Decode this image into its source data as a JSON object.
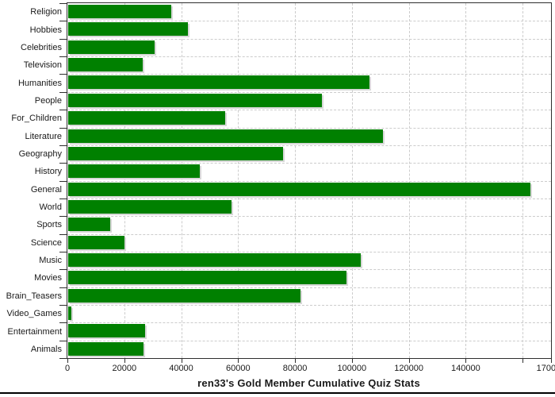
{
  "chart_data": {
    "type": "bar",
    "orientation": "horizontal",
    "title": "ren33's Gold Member Cumulative Quiz Stats",
    "categories": [
      "Religion",
      "Hobbies",
      "Celebrities",
      "Television",
      "Humanities",
      "People",
      "For_Children",
      "Literature",
      "Geography",
      "History",
      "General",
      "World",
      "Sports",
      "Science",
      "Music",
      "Movies",
      "Brain_Teasers",
      "Video_Games",
      "Entertainment",
      "Animals"
    ],
    "values": [
      36100,
      42000,
      30300,
      26200,
      105800,
      89300,
      55100,
      110600,
      75400,
      46300,
      162600,
      57300,
      14800,
      19700,
      102900,
      97900,
      81600,
      1000,
      26900,
      26400
    ],
    "xlabel": "",
    "ylabel": "",
    "xlim": [
      0,
      170000
    ],
    "x_ticks": [
      {
        "value": 0,
        "label": "0"
      },
      {
        "value": 20000,
        "label": "20000"
      },
      {
        "value": 40000,
        "label": "40000"
      },
      {
        "value": 60000,
        "label": "60000"
      },
      {
        "value": 80000,
        "label": "80000"
      },
      {
        "value": 100000,
        "label": "100000"
      },
      {
        "value": 120000,
        "label": "120000"
      },
      {
        "value": 140000,
        "label": "140000"
      },
      {
        "value": 160000,
        "label": ""
      },
      {
        "value": 170000,
        "label": "170000"
      }
    ],
    "grid": "dashed; vertical lines at x ticks, horizontal lines at category boundaries",
    "legend": "none",
    "bar_color": "#008000",
    "bar_shadow_color": "#d8d8d8",
    "grid_color": "#cccccc",
    "border_color": "#2e2e2e",
    "text_color": "#1a1a1a"
  }
}
